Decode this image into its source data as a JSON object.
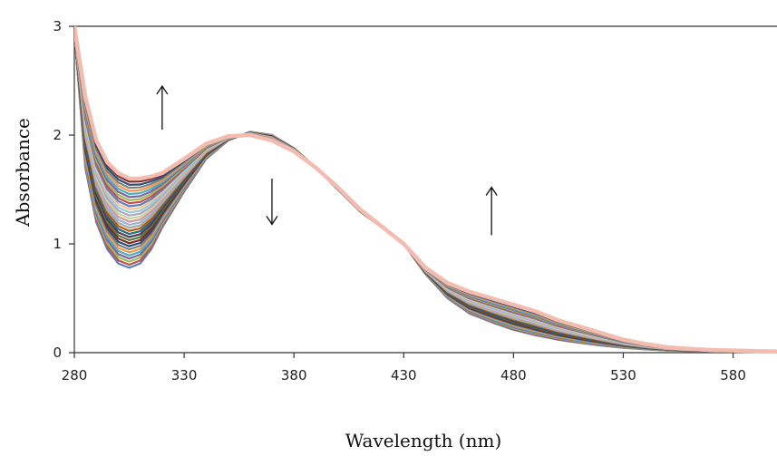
{
  "chart_data": {
    "type": "line",
    "title": "",
    "xlabel": "Wavelength (nm)",
    "ylabel": "Absorbance",
    "xlim": [
      280,
      600
    ],
    "ylim": [
      0,
      3
    ],
    "x_ticks": [
      "280",
      "330",
      "380",
      "430",
      "480",
      "530",
      "580"
    ],
    "y_ticks": [
      "0",
      "1",
      "2",
      "3"
    ],
    "grid": false,
    "legend": "none",
    "series_count": 30,
    "series_colors": [
      "#5b7fbf",
      "#c0504d",
      "#9bbb59",
      "#8064a2",
      "#4bacc6",
      "#f79646",
      "#7f7f7f",
      "#2c4d75",
      "#772c2a",
      "#5f7530",
      "#4d3b62",
      "#276a7c",
      "#b65708",
      "#a5a5a5",
      "#95b3d7",
      "#d99694",
      "#c3d69b",
      "#b2a2c7",
      "#92cddc",
      "#fac08f"
    ],
    "final_series_color": "#f4bcae",
    "first_series": {
      "x": [
        280,
        285,
        290,
        295,
        300,
        305,
        310,
        315,
        320,
        330,
        340,
        350,
        360,
        370,
        380,
        390,
        400,
        410,
        420,
        430,
        440,
        450,
        460,
        470,
        480,
        490,
        500,
        510,
        520,
        530,
        540,
        550,
        560,
        570,
        580,
        590,
        600
      ],
      "y": [
        2.95,
        1.7,
        1.2,
        0.95,
        0.82,
        0.78,
        0.82,
        0.95,
        1.15,
        1.48,
        1.78,
        1.95,
        2.03,
        2.0,
        1.88,
        1.7,
        1.5,
        1.3,
        1.15,
        1.0,
        0.72,
        0.5,
        0.36,
        0.28,
        0.21,
        0.16,
        0.12,
        0.09,
        0.065,
        0.045,
        0.03,
        0.02,
        0.015,
        0.01,
        0.008,
        0.006,
        0.005
      ]
    },
    "last_series": {
      "x": [
        280,
        285,
        290,
        295,
        300,
        305,
        310,
        315,
        320,
        330,
        340,
        350,
        360,
        370,
        380,
        390,
        400,
        410,
        420,
        430,
        440,
        450,
        460,
        470,
        480,
        490,
        500,
        510,
        520,
        530,
        540,
        550,
        560,
        570,
        580,
        590,
        600
      ],
      "y": [
        3.0,
        2.35,
        1.95,
        1.75,
        1.65,
        1.6,
        1.6,
        1.62,
        1.65,
        1.78,
        1.92,
        1.99,
        2.0,
        1.95,
        1.85,
        1.7,
        1.52,
        1.32,
        1.16,
        1.0,
        0.78,
        0.64,
        0.56,
        0.5,
        0.44,
        0.38,
        0.3,
        0.24,
        0.18,
        0.12,
        0.08,
        0.05,
        0.035,
        0.025,
        0.02,
        0.015,
        0.01
      ]
    },
    "annotations": [
      {
        "type": "arrow",
        "direction": "up",
        "x": 320,
        "y_from": 2.05,
        "y_to": 2.45
      },
      {
        "type": "arrow",
        "direction": "down",
        "x": 370,
        "y_from": 1.6,
        "y_to": 1.18
      },
      {
        "type": "arrow",
        "direction": "up",
        "x": 470,
        "y_from": 1.08,
        "y_to": 1.52
      }
    ]
  }
}
